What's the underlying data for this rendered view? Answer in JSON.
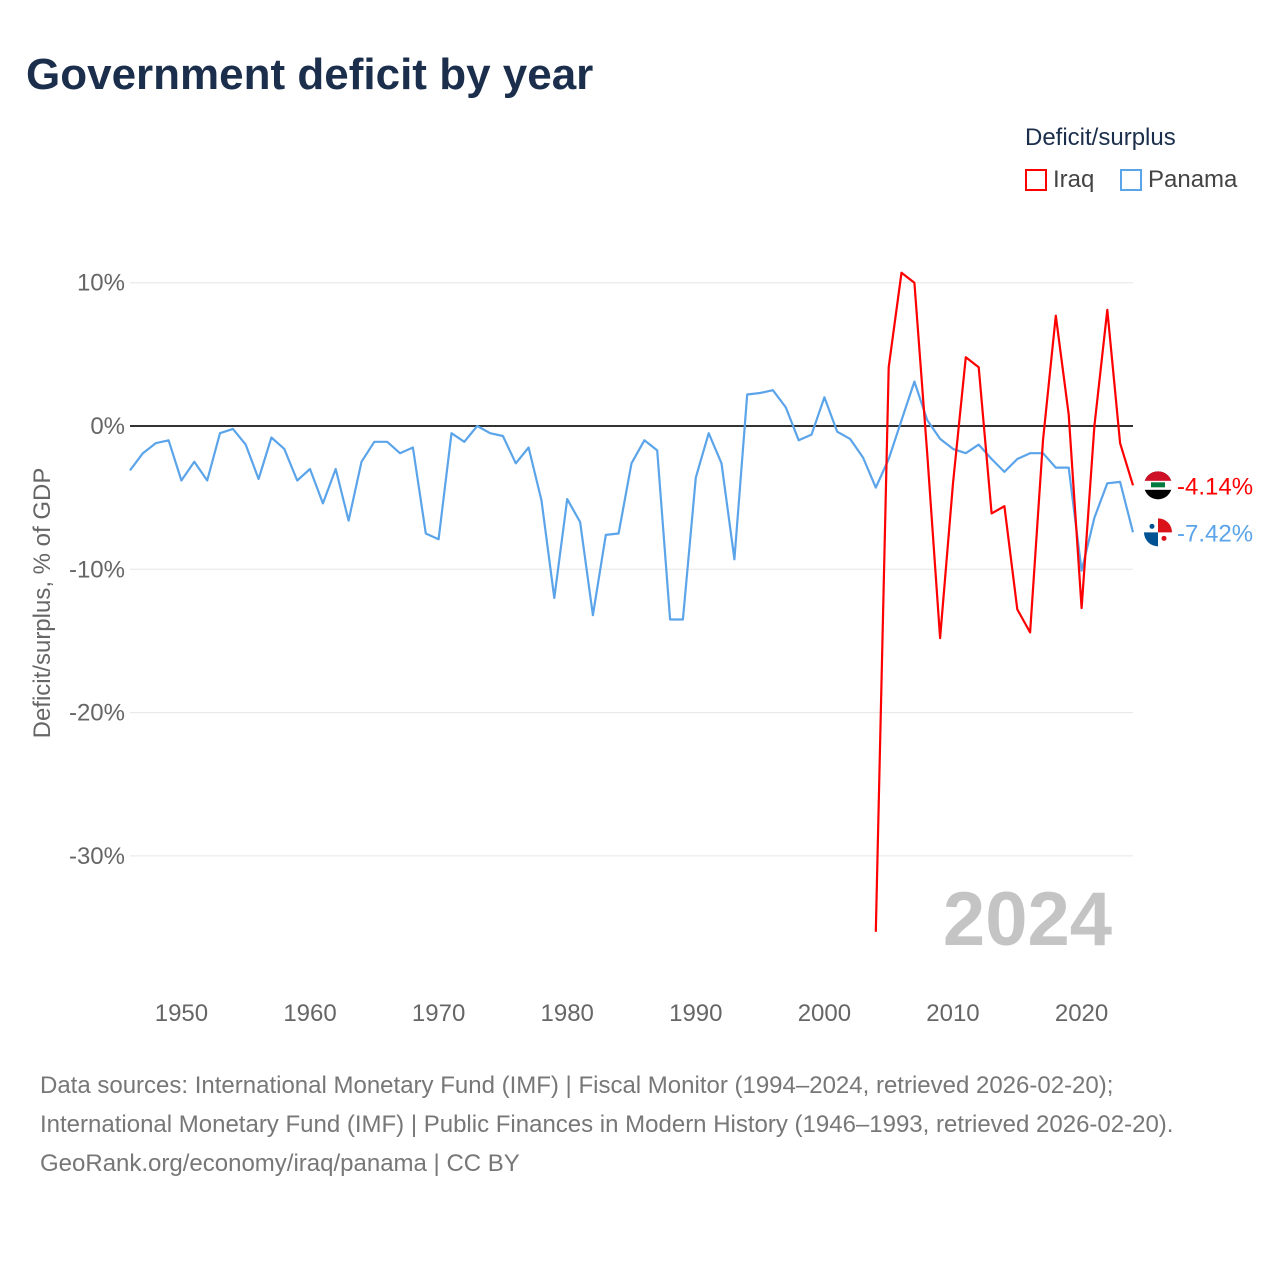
{
  "chart_data": {
    "type": "line",
    "title": "Government deficit by year",
    "xlabel": "",
    "ylabel": "Deficit/surplus, % of GDP",
    "xlim": [
      1946,
      2024
    ],
    "ylim": [
      -37,
      12
    ],
    "yticks": [
      10,
      0,
      -10,
      -20,
      -30
    ],
    "ytick_labels": [
      "10%",
      "0%",
      "-10%",
      "-20%",
      "-30%"
    ],
    "xticks": [
      1950,
      1960,
      1970,
      1980,
      1990,
      2000,
      2010,
      2020
    ],
    "xtick_labels": [
      "1950",
      "1960",
      "1970",
      "1980",
      "1990",
      "2000",
      "2010",
      "2020"
    ],
    "grid": true,
    "legend_title": "Deficit/surplus",
    "legend_position": "top-right",
    "year_watermark": "2024",
    "series": [
      {
        "name": "Iraq",
        "color": "#ff0000",
        "end_label": "-4.14%",
        "x": [
          2004,
          2005,
          2006,
          2007,
          2008,
          2009,
          2010,
          2011,
          2012,
          2013,
          2014,
          2015,
          2016,
          2017,
          2018,
          2019,
          2020,
          2021,
          2022,
          2023,
          2024
        ],
        "values": [
          -35.3,
          4.1,
          10.7,
          10.0,
          -2.0,
          -14.8,
          -4.0,
          4.8,
          4.1,
          -6.1,
          -5.6,
          -12.8,
          -14.4,
          -1.0,
          7.7,
          0.8,
          -12.7,
          0.0,
          8.1,
          -1.2,
          -4.14
        ]
      },
      {
        "name": "Panama",
        "color": "#5ba4ea",
        "end_label": "-7.42%",
        "x": [
          1946,
          1947,
          1948,
          1949,
          1950,
          1951,
          1952,
          1953,
          1954,
          1955,
          1956,
          1957,
          1958,
          1959,
          1960,
          1961,
          1962,
          1963,
          1964,
          1965,
          1966,
          1967,
          1968,
          1969,
          1970,
          1971,
          1972,
          1973,
          1974,
          1975,
          1976,
          1977,
          1978,
          1979,
          1980,
          1981,
          1982,
          1983,
          1984,
          1985,
          1986,
          1987,
          1988,
          1989,
          1990,
          1991,
          1992,
          1993,
          1994,
          1995,
          1996,
          1997,
          1998,
          1999,
          2000,
          2001,
          2002,
          2003,
          2004,
          2005,
          2006,
          2007,
          2008,
          2009,
          2010,
          2011,
          2012,
          2013,
          2014,
          2015,
          2016,
          2017,
          2018,
          2019,
          2020,
          2021,
          2022,
          2023,
          2024
        ],
        "values": [
          -3.1,
          -1.9,
          -1.2,
          -1.0,
          -3.8,
          -2.5,
          -3.8,
          -0.5,
          -0.2,
          -1.3,
          -3.7,
          -0.8,
          -1.6,
          -3.8,
          -3.0,
          -5.4,
          -3.0,
          -6.6,
          -2.5,
          -1.1,
          -1.1,
          -1.9,
          -1.5,
          -7.5,
          -7.9,
          -0.5,
          -1.1,
          0.0,
          -0.5,
          -0.7,
          -2.6,
          -1.5,
          -5.2,
          -12.0,
          -5.1,
          -6.7,
          -13.2,
          -7.6,
          -7.5,
          -2.6,
          -1.0,
          -1.7,
          -13.5,
          -13.5,
          -3.6,
          -0.5,
          -2.6,
          -9.3,
          2.2,
          2.3,
          2.5,
          1.3,
          -1.0,
          -0.6,
          2.0,
          -0.4,
          -0.9,
          -2.2,
          -4.3,
          -2.3,
          0.4,
          3.1,
          0.4,
          -0.9,
          -1.6,
          -1.9,
          -1.3,
          -2.3,
          -3.2,
          -2.3,
          -1.9,
          -1.9,
          -2.9,
          -2.9,
          -10.1,
          -6.4,
          -4.0,
          -3.9,
          -7.42
        ]
      }
    ]
  },
  "footer": {
    "sources": "Data sources: International Monetary Fund (IMF) | Fiscal Monitor (1994–2024, retrieved 2026-02-20); International Monetary Fund (IMF) | Public Finances in Modern History (1946–1993, retrieved 2026-02-20).",
    "credit": "GeoRank.org/economy/iraq/panama | CC BY"
  }
}
